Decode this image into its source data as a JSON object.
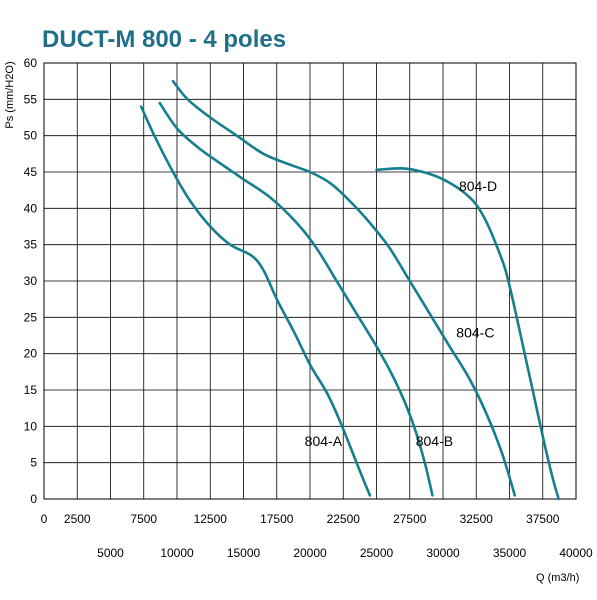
{
  "chart_data": {
    "type": "line",
    "title": "DUCT-M  800 - 4 poles",
    "ylabel": "Ps (mm/H2O)",
    "xlabel": "Q (m3/h)",
    "xlim": [
      0,
      40000
    ],
    "ylim": [
      0,
      60
    ],
    "grid": true,
    "y_ticks": [
      "0",
      "5",
      "10",
      "15",
      "20",
      "25",
      "30",
      "35",
      "40",
      "45",
      "50",
      "55",
      "60"
    ],
    "x_ticks_upper": [
      "0",
      "2500",
      "7500",
      "12500",
      "17500",
      "22500",
      "27500",
      "32500",
      "37500"
    ],
    "x_ticks_lower": [
      "5000",
      "10000",
      "15000",
      "20000",
      "25000",
      "30000",
      "35000",
      "40000"
    ],
    "curve_color": "#167f8f",
    "title_color": "#1f6f88",
    "series": [
      {
        "name": "804-A",
        "label_at": [
          19600,
          7.3
        ],
        "points": [
          [
            7300,
            54
          ],
          [
            8300,
            50
          ],
          [
            9700,
            45
          ],
          [
            11000,
            41
          ],
          [
            12500,
            37.5
          ],
          [
            14000,
            35
          ],
          [
            15600,
            33.5
          ],
          [
            16500,
            31.5
          ],
          [
            17500,
            27.5
          ],
          [
            18800,
            23
          ],
          [
            20000,
            18.5
          ],
          [
            21300,
            14.5
          ],
          [
            22300,
            10.5
          ],
          [
            23500,
            5
          ],
          [
            24500,
            0.5
          ]
        ]
      },
      {
        "name": "804-B",
        "label_at": [
          27950,
          7.3
        ],
        "points": [
          [
            8700,
            54.5
          ],
          [
            10000,
            51
          ],
          [
            11500,
            48.5
          ],
          [
            13000,
            46.5
          ],
          [
            15000,
            44
          ],
          [
            17000,
            41.5
          ],
          [
            19000,
            38
          ],
          [
            20500,
            34.5
          ],
          [
            22000,
            30
          ],
          [
            23500,
            25.5
          ],
          [
            25000,
            21
          ],
          [
            26200,
            17
          ],
          [
            27200,
            13
          ],
          [
            28000,
            9
          ],
          [
            28700,
            4.5
          ],
          [
            29200,
            0.5
          ]
        ]
      },
      {
        "name": "804-C",
        "label_at": [
          31000,
          22.2
        ],
        "points": [
          [
            9700,
            57.5
          ],
          [
            10800,
            55
          ],
          [
            12500,
            52.5
          ],
          [
            14500,
            50
          ],
          [
            16500,
            47.5
          ],
          [
            18500,
            46
          ],
          [
            20000,
            45
          ],
          [
            21500,
            43.5
          ],
          [
            23000,
            41
          ],
          [
            24500,
            38
          ],
          [
            26000,
            34.5
          ],
          [
            27500,
            30
          ],
          [
            29000,
            25.5
          ],
          [
            30500,
            21
          ],
          [
            32000,
            16.5
          ],
          [
            33200,
            12
          ],
          [
            34300,
            7
          ],
          [
            35000,
            3
          ],
          [
            35400,
            0.5
          ]
        ]
      },
      {
        "name": "804-D",
        "label_at": [
          31200,
          42.4
        ],
        "points": [
          [
            25000,
            45.3
          ],
          [
            27000,
            45.5
          ],
          [
            28500,
            45
          ],
          [
            30000,
            44
          ],
          [
            31500,
            42.3
          ],
          [
            32500,
            40.5
          ],
          [
            33300,
            38
          ],
          [
            34000,
            35
          ],
          [
            34700,
            31.5
          ],
          [
            35300,
            27
          ],
          [
            35900,
            22
          ],
          [
            36500,
            17
          ],
          [
            37100,
            12
          ],
          [
            37700,
            7
          ],
          [
            38300,
            2.5
          ],
          [
            38700,
            0
          ]
        ]
      }
    ]
  }
}
